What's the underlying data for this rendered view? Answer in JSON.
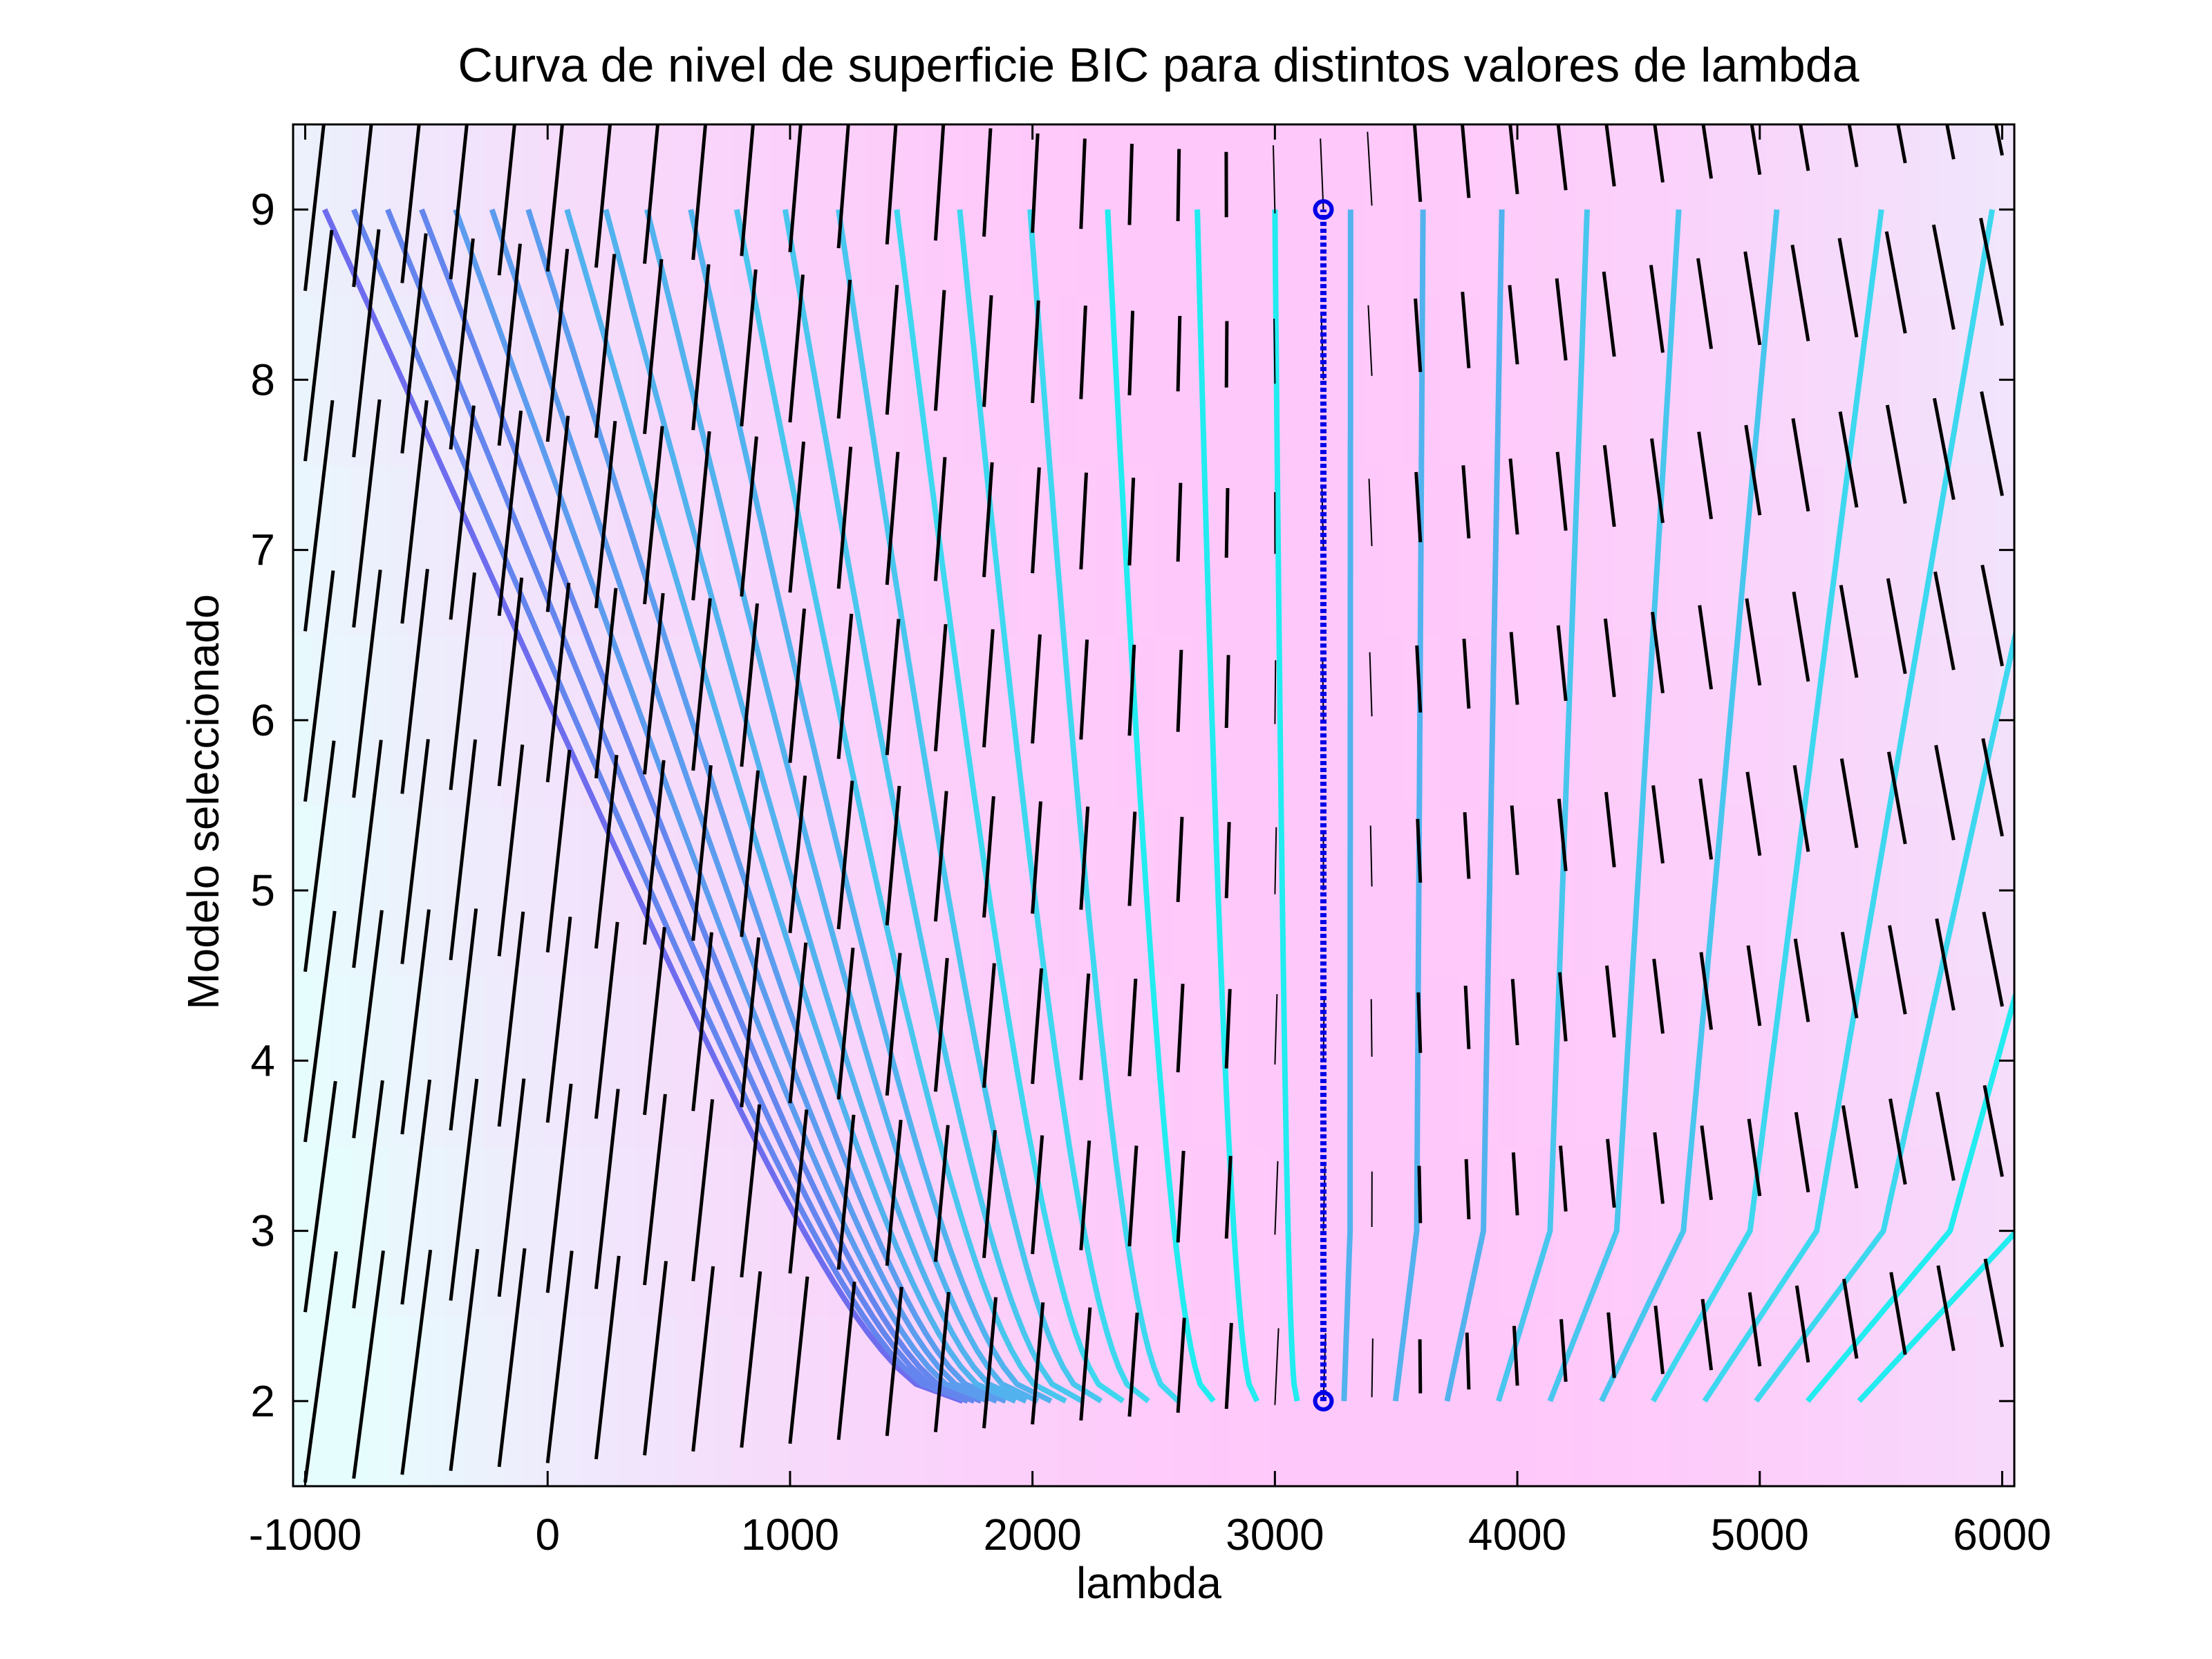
{
  "chart_data": {
    "type": "contour",
    "title": "Curva de nivel de superficie BIC para distintos valores de lambda",
    "xlabel": "lambda",
    "ylabel": "Modelo seleccionado",
    "xlim": [
      -1050,
      6050
    ],
    "ylim": [
      1.5,
      9.5
    ],
    "xticks": [
      -1000,
      0,
      1000,
      2000,
      3000,
      4000,
      5000,
      6000
    ],
    "xtick_labels": [
      "-1000",
      "0",
      "1000",
      "2000",
      "3000",
      "4000",
      "5000",
      "6000"
    ],
    "yticks": [
      2,
      3,
      4,
      5,
      6,
      7,
      8,
      9
    ],
    "ytick_labels": [
      "2",
      "3",
      "4",
      "5",
      "6",
      "7",
      "8",
      "9"
    ],
    "grid": false,
    "background_colors": {
      "low": "#e6fdfd",
      "high": "#ffc8fa"
    },
    "optimum_line": {
      "x": 3200,
      "y_from": 2,
      "y_to": 9,
      "color": "#0000e6"
    },
    "contour_colors": [
      "#8844ee",
      "#7755ee",
      "#6e6cee",
      "#6485ee",
      "#5c9cee",
      "#52b2ee",
      "#48c6ee",
      "#3dd8ef",
      "#22ecf0"
    ],
    "quiver_x": {
      "start": -1000,
      "step": 200,
      "count": 36
    },
    "quiver_y": [
      2,
      3,
      4,
      5,
      6,
      7,
      8,
      9
    ]
  }
}
